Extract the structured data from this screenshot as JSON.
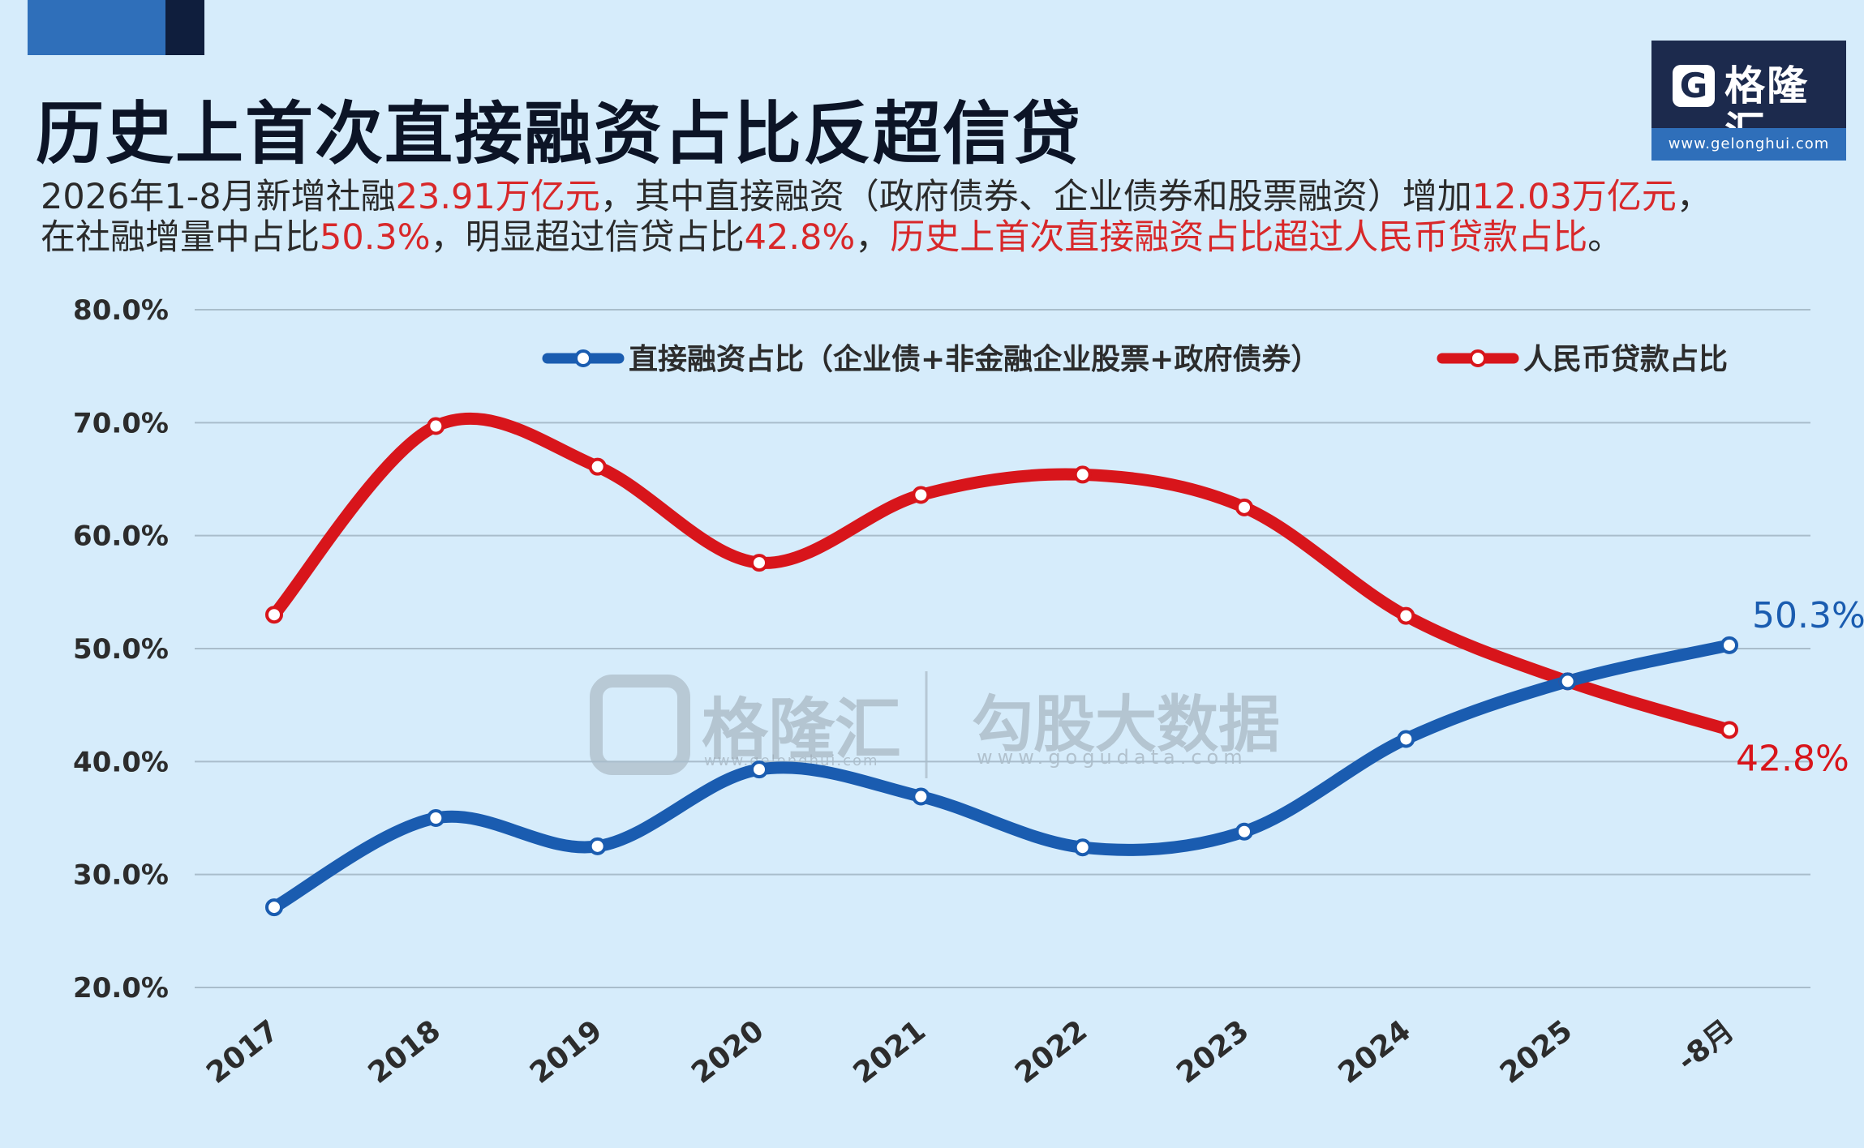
{
  "header": {
    "title": "历史上首次直接融资占比反超信贷",
    "subtitle": {
      "line1": [
        {
          "text": "2026年1-8月新增社融",
          "highlight": false
        },
        {
          "text": "23.91万亿元",
          "highlight": true
        },
        {
          "text": "，其中直接融资（政府债券、企业债券和股票融资）增加",
          "highlight": false
        },
        {
          "text": "12.03万亿元",
          "highlight": true
        },
        {
          "text": "，",
          "highlight": false
        }
      ],
      "line2": [
        {
          "text": "在社融增量中占比",
          "highlight": false
        },
        {
          "text": "50.3%",
          "highlight": true
        },
        {
          "text": "，明显超过信贷占比",
          "highlight": false
        },
        {
          "text": "42.8%",
          "highlight": true
        },
        {
          "text": "，",
          "highlight": false
        },
        {
          "text": "历史上首次直接融资占比超过人民币贷款占比",
          "highlight": true
        },
        {
          "text": "。",
          "highlight": false
        }
      ]
    }
  },
  "logo": {
    "icon": "g-logo-icon",
    "mark": "G",
    "brand": "格隆汇",
    "url": "www.gelonghui.com"
  },
  "watermark": {
    "brand": "格隆汇",
    "brand_url": "www.gelonghui.com",
    "partner": "勾股大数据",
    "partner_url": "www.gogudata.com"
  },
  "colors": {
    "blue_series": "#1a5cb0",
    "red_series": "#d8151b",
    "highlight_red": "#d8282a",
    "background": "#d6ecfb"
  },
  "chart_data": {
    "type": "line",
    "categories": [
      "2017",
      "2018",
      "2019",
      "2020",
      "2021",
      "2022",
      "2023",
      "2024",
      "2025",
      "2026年1-8月"
    ],
    "x_tick_labels": [
      "2017",
      "2018",
      "2019",
      "2020",
      "2021",
      "2022",
      "2023",
      "2024",
      "2025",
      "-8月"
    ],
    "series": [
      {
        "name": "直接融资占比（企业债+非金融企业股票+政府债券）",
        "color": "#1a5cb0",
        "values": [
          27.1,
          35.0,
          32.5,
          39.3,
          36.9,
          32.4,
          33.8,
          42.0,
          47.1,
          50.3
        ]
      },
      {
        "name": "人民币贷款占比",
        "color": "#d8151b",
        "values": [
          53.0,
          69.7,
          66.1,
          57.6,
          63.6,
          65.4,
          62.5,
          52.9,
          47.1,
          42.8
        ]
      }
    ],
    "end_labels": [
      "50.3%",
      "42.8%"
    ],
    "y_ticks": [
      "20.0%",
      "30.0%",
      "40.0%",
      "50.0%",
      "60.0%",
      "70.0%",
      "80.0%"
    ],
    "ylim": [
      20,
      80
    ],
    "grid": true,
    "smooth": true,
    "legend_position": "top-right"
  }
}
